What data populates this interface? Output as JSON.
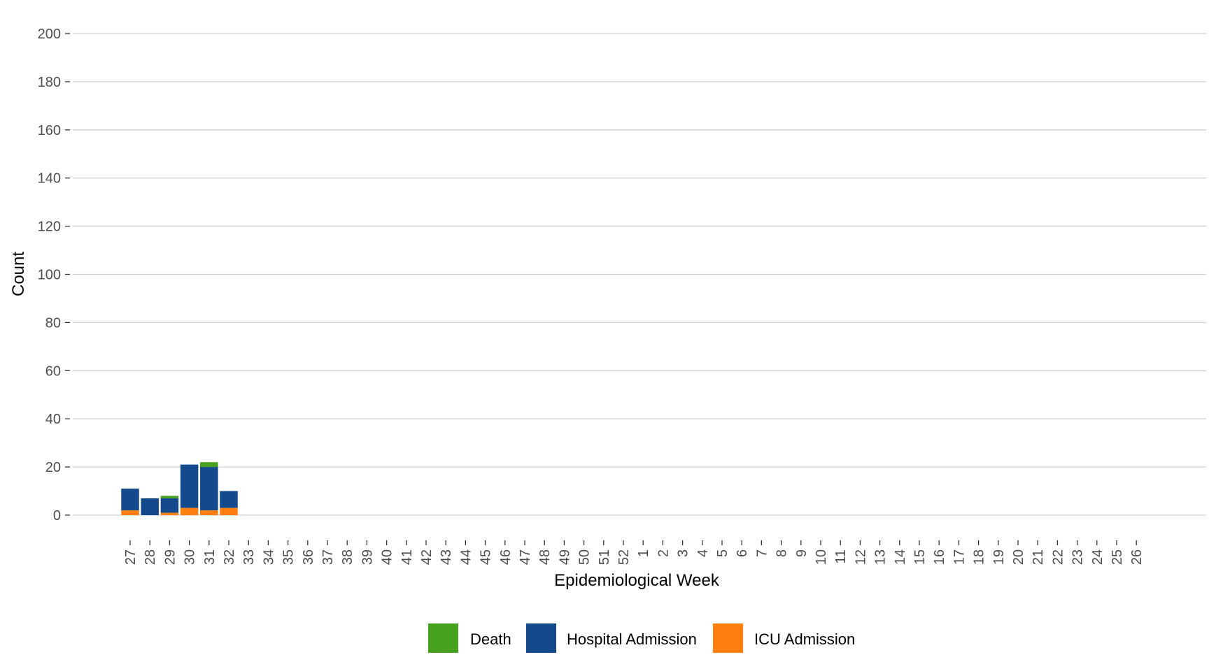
{
  "chart_data": {
    "type": "bar",
    "stacked": true,
    "xlabel": "Epidemiological Week",
    "ylabel": "Count",
    "ylim": [
      0,
      200
    ],
    "yticks": [
      0,
      20,
      40,
      60,
      80,
      100,
      120,
      140,
      160,
      180,
      200
    ],
    "grid": true,
    "legend_position": "bottom",
    "categories": [
      "27",
      "28",
      "29",
      "30",
      "31",
      "32",
      "33",
      "34",
      "35",
      "36",
      "37",
      "38",
      "39",
      "40",
      "41",
      "42",
      "43",
      "44",
      "45",
      "46",
      "47",
      "48",
      "49",
      "50",
      "51",
      "52",
      "1",
      "2",
      "3",
      "4",
      "5",
      "6",
      "7",
      "8",
      "9",
      "10",
      "11",
      "12",
      "13",
      "14",
      "15",
      "16",
      "17",
      "18",
      "19",
      "20",
      "21",
      "22",
      "23",
      "24",
      "25",
      "26"
    ],
    "series": [
      {
        "name": "ICU Admission",
        "color": "#ff7f0e",
        "values": [
          2,
          0,
          1,
          3,
          2,
          3,
          0,
          0,
          0,
          0,
          0,
          0,
          0,
          0,
          0,
          0,
          0,
          0,
          0,
          0,
          0,
          0,
          0,
          0,
          0,
          0,
          0,
          0,
          0,
          0,
          0,
          0,
          0,
          0,
          0,
          0,
          0,
          0,
          0,
          0,
          0,
          0,
          0,
          0,
          0,
          0,
          0,
          0,
          0,
          0,
          0,
          0
        ]
      },
      {
        "name": "Hospital Admission",
        "color": "#144a8c",
        "values": [
          9,
          7,
          6,
          18,
          18,
          7,
          0,
          0,
          0,
          0,
          0,
          0,
          0,
          0,
          0,
          0,
          0,
          0,
          0,
          0,
          0,
          0,
          0,
          0,
          0,
          0,
          0,
          0,
          0,
          0,
          0,
          0,
          0,
          0,
          0,
          0,
          0,
          0,
          0,
          0,
          0,
          0,
          0,
          0,
          0,
          0,
          0,
          0,
          0,
          0,
          0,
          0
        ]
      },
      {
        "name": "Death",
        "color": "#46a21e",
        "values": [
          0,
          0,
          1,
          0,
          2,
          0,
          0,
          0,
          0,
          0,
          0,
          0,
          0,
          0,
          0,
          0,
          0,
          0,
          0,
          0,
          0,
          0,
          0,
          0,
          0,
          0,
          0,
          0,
          0,
          0,
          0,
          0,
          0,
          0,
          0,
          0,
          0,
          0,
          0,
          0,
          0,
          0,
          0,
          0,
          0,
          0,
          0,
          0,
          0,
          0,
          0,
          0
        ]
      }
    ],
    "legend": [
      {
        "name": "Death",
        "color": "#46a21e"
      },
      {
        "name": "Hospital Admission",
        "color": "#144a8c"
      },
      {
        "name": "ICU Admission",
        "color": "#ff7f0e"
      }
    ]
  }
}
